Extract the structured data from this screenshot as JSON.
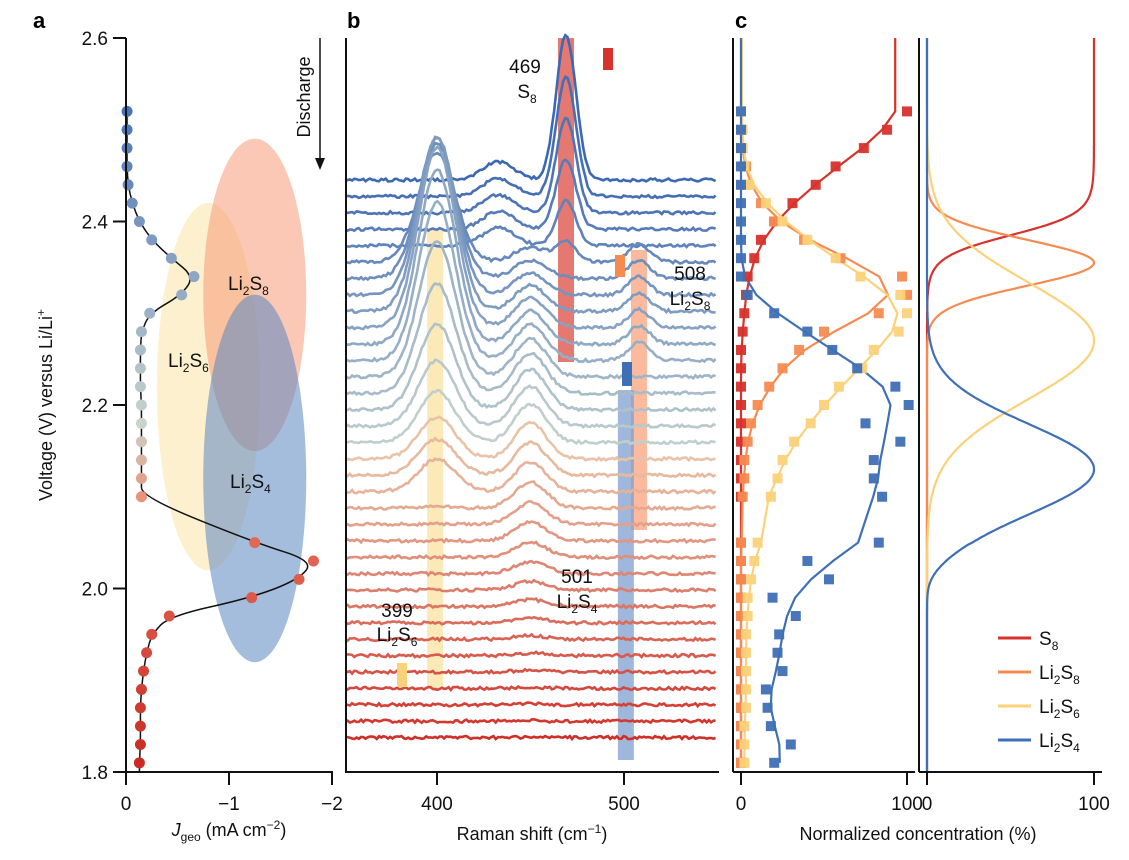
{
  "chart_data": [
    {
      "panel": "a",
      "type": "scatter",
      "panel_label": "a",
      "xlabel_main": "J",
      "xlabel_sub": "geo",
      "xlabel_rest": " (mA cm",
      "xlabel_sup": "−2",
      "xlabel_end": ")",
      "ylabel": "Voltage (V) versus Li/Li",
      "ylabel_sup": "+",
      "xlim": [
        0,
        -2
      ],
      "ylim": [
        1.8,
        2.6
      ],
      "xticks": [
        {
          "v": 0,
          "label": "0"
        },
        {
          "v": -1,
          "label": "−1"
        },
        {
          "v": -2,
          "label": "−2"
        }
      ],
      "yticks": [
        {
          "v": 2.6,
          "label": "2.6"
        },
        {
          "v": 2.4,
          "label": "2.4"
        },
        {
          "v": 2.2,
          "label": "2.2"
        },
        {
          "v": 2.0,
          "label": "2.0"
        },
        {
          "v": 1.8,
          "label": "1.8"
        }
      ],
      "discharge_label": "Discharge",
      "points": [
        {
          "V": 2.52,
          "J": -0.01
        },
        {
          "V": 2.5,
          "J": -0.01
        },
        {
          "V": 2.48,
          "J": -0.01
        },
        {
          "V": 2.46,
          "J": -0.01
        },
        {
          "V": 2.44,
          "J": -0.02
        },
        {
          "V": 2.42,
          "J": -0.06
        },
        {
          "V": 2.4,
          "J": -0.13
        },
        {
          "V": 2.38,
          "J": -0.25
        },
        {
          "V": 2.36,
          "J": -0.44
        },
        {
          "V": 2.34,
          "J": -0.66
        },
        {
          "V": 2.32,
          "J": -0.54
        },
        {
          "V": 2.3,
          "J": -0.23
        },
        {
          "V": 2.28,
          "J": -0.15
        },
        {
          "V": 2.26,
          "J": -0.14
        },
        {
          "V": 2.24,
          "J": -0.14
        },
        {
          "V": 2.22,
          "J": -0.14
        },
        {
          "V": 2.2,
          "J": -0.15
        },
        {
          "V": 2.18,
          "J": -0.15
        },
        {
          "V": 2.16,
          "J": -0.15
        },
        {
          "V": 2.14,
          "J": -0.15
        },
        {
          "V": 2.12,
          "J": -0.15
        },
        {
          "V": 2.1,
          "J": -0.15
        },
        {
          "V": 2.05,
          "J": -1.25
        },
        {
          "V": 2.03,
          "J": -1.82
        },
        {
          "V": 2.01,
          "J": -1.68
        },
        {
          "V": 1.99,
          "J": -1.22
        },
        {
          "V": 1.97,
          "J": -0.42
        },
        {
          "V": 1.95,
          "J": -0.25
        },
        {
          "V": 1.93,
          "J": -0.2
        },
        {
          "V": 1.91,
          "J": -0.17
        },
        {
          "V": 1.89,
          "J": -0.15
        },
        {
          "V": 1.87,
          "J": -0.14
        },
        {
          "V": 1.85,
          "J": -0.14
        },
        {
          "V": 1.83,
          "J": -0.14
        },
        {
          "V": 1.81,
          "J": -0.13
        }
      ],
      "regions": [
        {
          "name": "Li2S6",
          "label_main": "Li",
          "label_sub1": "2",
          "label_mid": "S",
          "label_sub2": "6",
          "color": "#fbe3a6",
          "center": {
            "J": -0.8,
            "V": 2.22
          },
          "radius": {
            "J": 0.5,
            "V": 0.2
          }
        },
        {
          "name": "Li2S8",
          "label_main": "Li",
          "label_sub1": "2",
          "label_mid": "S",
          "label_sub2": "8",
          "color": "#f59a76",
          "center": {
            "J": -1.25,
            "V": 2.32
          },
          "radius": {
            "J": 0.5,
            "V": 0.17
          }
        },
        {
          "name": "Li2S4",
          "label_main": "Li",
          "label_sub1": "2",
          "label_mid": "S",
          "label_sub2": "4",
          "color": "#5b86c1",
          "center": {
            "J": -1.25,
            "V": 2.12
          },
          "radius": {
            "J": 0.5,
            "V": 0.2
          }
        }
      ]
    },
    {
      "panel": "b",
      "type": "line",
      "panel_label": "b",
      "xlabel": "Raman shift (cm",
      "xlabel_sup": "−1",
      "xlabel_end": ")",
      "xlim": [
        351,
        550
      ],
      "xticks": [
        {
          "v": 400,
          "label": "400"
        },
        {
          "v": 500,
          "label": "500"
        }
      ],
      "n_spectra": 35,
      "color_top": "#3d68b3",
      "color_mid": "#c8d5cf",
      "color_bottom": "#cf2f27",
      "bands": [
        {
          "name": "S8",
          "center": 469,
          "label_num": "469",
          "label_mid": "S",
          "label_sub": "8",
          "label_pre": "",
          "label_sub_pre": "",
          "color": "#dd4b43",
          "marker_color": "#d7322b"
        },
        {
          "name": "Li2S8",
          "center": 508,
          "label_num": "508",
          "label_pre": "Li",
          "label_sub_pre": "2",
          "label_mid": "S",
          "label_sub": "8",
          "color": "#f9a27c",
          "marker_color": "#f68b51"
        },
        {
          "name": "Li2S4",
          "center": 501,
          "label_num": "501",
          "label_pre": "Li",
          "label_sub_pre": "2",
          "label_mid": "S",
          "label_sub": "4",
          "color": "#7f9fcd",
          "marker_color": "#3f6fb5"
        },
        {
          "name": "Li2S6",
          "center": 399,
          "label_num": "399",
          "label_pre": "Li",
          "label_sub_pre": "2",
          "label_mid": "S",
          "label_sub": "6",
          "color": "#fbe1a0",
          "marker_color": "#fbd27a"
        }
      ]
    },
    {
      "panel": "c",
      "type": "scatter",
      "panel_label": "c",
      "xlabel": "Normalized concentration (%)",
      "xlim": [
        0,
        100
      ],
      "ylim": [
        1.8,
        2.6
      ],
      "xticks_left": [
        {
          "v": 0,
          "label": "0"
        },
        {
          "v": 100,
          "label": "100"
        }
      ],
      "xticks_right": [
        {
          "v": 0,
          "label": "0"
        },
        {
          "v": 100,
          "label": "100"
        }
      ],
      "legend_position": "bottom-right",
      "series": [
        {
          "name": "S8",
          "label_pre": "",
          "label_sub_pre": "",
          "label_mid": "S",
          "label_sub": "8",
          "color": "#d7322b",
          "values": [
            100,
            88,
            74,
            57,
            45,
            31,
            20,
            12,
            8,
            4,
            3,
            2,
            1,
            0,
            0,
            0,
            0,
            0,
            0,
            0,
            0,
            0,
            0,
            0,
            0,
            0,
            0,
            0,
            0,
            0,
            0,
            0,
            0,
            0,
            0
          ]
        },
        {
          "name": "Li2S8",
          "label_pre": "Li",
          "label_sub_pre": "2",
          "label_mid": "S",
          "label_sub": "8",
          "color": "#f68b51",
          "values": [
            0,
            0,
            0,
            3,
            3,
            12,
            20,
            38,
            60,
            97,
            100,
            83,
            50,
            35,
            25,
            17,
            10,
            6,
            4,
            2,
            2,
            1,
            0,
            0,
            0,
            0,
            0,
            0,
            0,
            0,
            0,
            0,
            0,
            0,
            0
          ]
        },
        {
          "name": "Li2S6",
          "label_pre": "Li",
          "label_sub_pre": "2",
          "label_mid": "S",
          "label_sub": "6",
          "color": "#fbd27a",
          "values": [
            0,
            1,
            1,
            2,
            5,
            15,
            25,
            40,
            57,
            72,
            96,
            100,
            95,
            80,
            73,
            59,
            50,
            42,
            32,
            25,
            22,
            18,
            10,
            8,
            6,
            4,
            4,
            3,
            3,
            3,
            3,
            3,
            2,
            2,
            2
          ]
        },
        {
          "name": "Li2S4",
          "label_pre": "Li",
          "label_sub_pre": "2",
          "label_mid": "S",
          "label_sub": "4",
          "color": "#3f6fb5",
          "values": [
            0,
            0,
            0,
            0,
            0,
            0,
            0,
            0,
            0,
            0,
            4,
            20,
            40,
            55,
            70,
            93,
            101,
            75,
            96,
            80,
            80,
            85,
            83,
            40,
            53,
            19,
            33,
            23,
            22,
            25,
            15,
            16,
            18,
            30,
            20
          ]
        }
      ],
      "fit_curves_note": "smooth fits over scatter (left) and modelled concentration profiles (right)"
    }
  ]
}
